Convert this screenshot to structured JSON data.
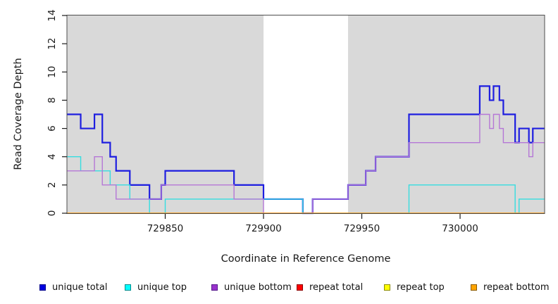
{
  "chart_data": {
    "type": "line",
    "subtype": "step-after-coverage",
    "title": "",
    "xlabel": "Coordinate in Reference Genome",
    "ylabel": "Read Coverage Depth",
    "xlim": [
      729800,
      730043
    ],
    "ylim": [
      0,
      14
    ],
    "grid": false,
    "x_ticks": [
      729850,
      729900,
      729950,
      730000
    ],
    "y_ticks": [
      0,
      2,
      4,
      6,
      8,
      10,
      12,
      14
    ],
    "background_color": "#ffffff",
    "band_color": "#d9d9d9",
    "highlight_bands": [
      [
        729800,
        729900
      ],
      [
        729943,
        730043
      ]
    ],
    "series": [
      {
        "name": "unique total",
        "color": "#1e1ee0",
        "line_width": 2.2,
        "points": [
          [
            729800,
            7
          ],
          [
            729807,
            6
          ],
          [
            729814,
            7
          ],
          [
            729818,
            5
          ],
          [
            729822,
            4
          ],
          [
            729825,
            3
          ],
          [
            729832,
            2
          ],
          [
            729842,
            1
          ],
          [
            729848,
            2
          ],
          [
            729850,
            3
          ],
          [
            729885,
            2
          ],
          [
            729900,
            1
          ],
          [
            729920,
            0
          ],
          [
            729925,
            1
          ],
          [
            729943,
            2
          ],
          [
            729952,
            3
          ],
          [
            729957,
            4
          ],
          [
            729974,
            7
          ],
          [
            730010,
            9
          ],
          [
            730015,
            8
          ],
          [
            730017,
            9
          ],
          [
            730020,
            8
          ],
          [
            730022,
            7
          ],
          [
            730028,
            5
          ],
          [
            730030,
            6
          ],
          [
            730035,
            5
          ],
          [
            730037,
            6
          ]
        ]
      },
      {
        "name": "unique top",
        "color": "#35dde0",
        "line_width": 1.4,
        "points": [
          [
            729800,
            4
          ],
          [
            729807,
            3
          ],
          [
            729822,
            2
          ],
          [
            729832,
            1
          ],
          [
            729842,
            0
          ],
          [
            729850,
            1
          ],
          [
            729920,
            0
          ],
          [
            729974,
            2
          ],
          [
            730028,
            0
          ],
          [
            730030,
            1
          ]
        ]
      },
      {
        "name": "unique bottom",
        "color": "#b577d6",
        "line_width": 1.4,
        "points": [
          [
            729800,
            3
          ],
          [
            729814,
            4
          ],
          [
            729818,
            2
          ],
          [
            729825,
            1
          ],
          [
            729848,
            2
          ],
          [
            729885,
            1
          ],
          [
            729900,
            0
          ],
          [
            729925,
            1
          ],
          [
            729943,
            2
          ],
          [
            729952,
            3
          ],
          [
            729957,
            4
          ],
          [
            729974,
            5
          ],
          [
            730010,
            7
          ],
          [
            730015,
            6
          ],
          [
            730017,
            7
          ],
          [
            730020,
            6
          ],
          [
            730022,
            5
          ],
          [
            730035,
            4
          ],
          [
            730037,
            5
          ]
        ]
      },
      {
        "name": "repeat total",
        "color": "#e02222",
        "line_width": 1.2,
        "points": [
          [
            729800,
            0
          ]
        ]
      },
      {
        "name": "repeat top",
        "color": "#efef1a",
        "line_width": 1.2,
        "points": [
          [
            729800,
            0
          ]
        ]
      },
      {
        "name": "repeat bottom",
        "color": "#ffa11c",
        "line_width": 1.6,
        "points": [
          [
            729800,
            0
          ]
        ]
      }
    ],
    "legend_position": "bottom"
  },
  "legend": {
    "items": [
      {
        "label": "unique total",
        "fill": "#0000e0",
        "border": "#00008b"
      },
      {
        "label": "unique top",
        "fill": "#00ffff",
        "border": "#008b8b"
      },
      {
        "label": "unique bottom",
        "fill": "#9932cc",
        "border": "#55188b"
      },
      {
        "label": "repeat total",
        "fill": "#ff0000",
        "border": "#8b0000"
      },
      {
        "label": "repeat top",
        "fill": "#ffff00",
        "border": "#8b8b00"
      },
      {
        "label": "repeat bottom",
        "fill": "#ffa500",
        "border": "#8b5a00"
      }
    ]
  }
}
